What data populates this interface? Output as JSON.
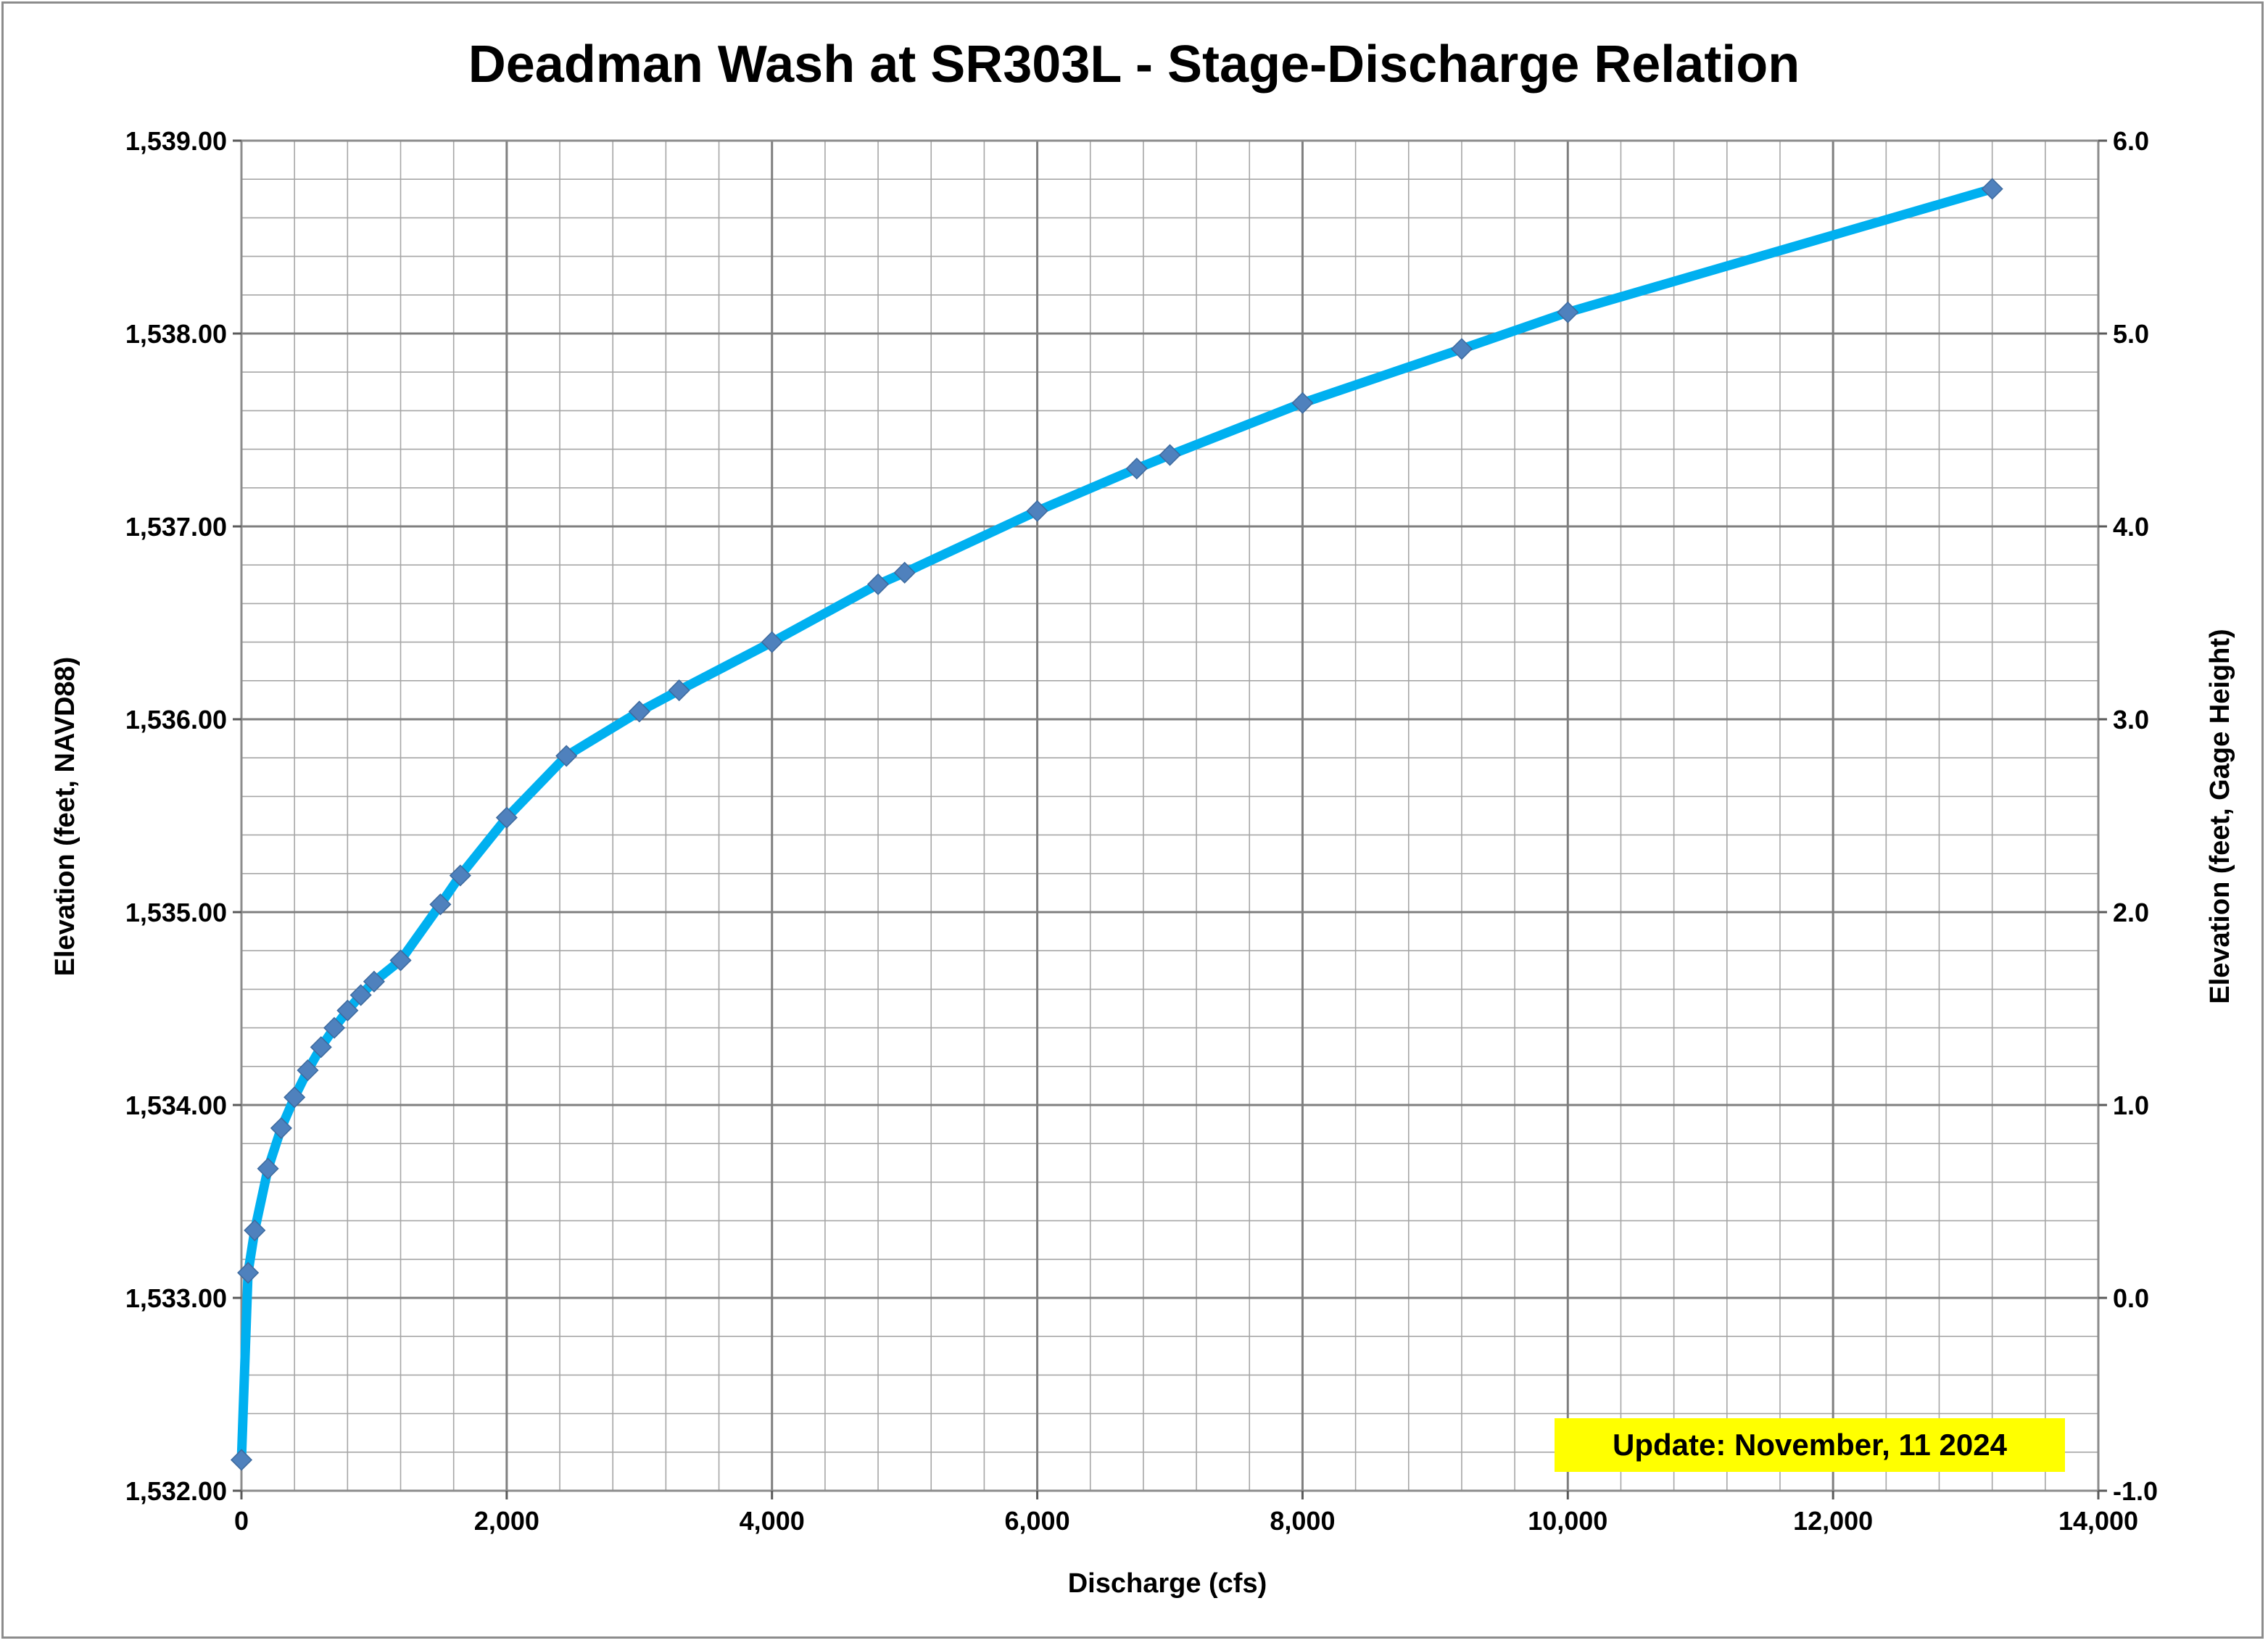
{
  "chart_data": {
    "type": "line",
    "title": "Deadman Wash at SR303L - Stage-Discharge Relation",
    "xlabel": "Discharge (cfs)",
    "ylabel": "Elevation (feet, NAVD88)",
    "y2label": "Elevation (feet, Gage Height)",
    "xlim": [
      0,
      14000
    ],
    "ylim": [
      1532.0,
      1539.0
    ],
    "y2lim": [
      -1.0,
      6.0
    ],
    "x_ticks": [
      0,
      2000,
      4000,
      6000,
      8000,
      10000,
      12000,
      14000
    ],
    "x_tick_labels": [
      "0",
      "2,000",
      "4,000",
      "6,000",
      "8,000",
      "10,000",
      "12,000",
      "14,000"
    ],
    "y_ticks": [
      1532,
      1533,
      1534,
      1535,
      1536,
      1537,
      1538,
      1539
    ],
    "y_tick_labels": [
      "1,532.00",
      "1,533.00",
      "1,534.00",
      "1,535.00",
      "1,536.00",
      "1,537.00",
      "1,538.00",
      "1,539.00"
    ],
    "y2_ticks": [
      -1,
      0,
      1,
      2,
      3,
      4,
      5,
      6
    ],
    "y2_tick_labels": [
      "-1.0",
      "0.0",
      "1.0",
      "2.0",
      "3.0",
      "4.0",
      "5.0",
      "6.0"
    ],
    "grid": true,
    "minor_grid_x": 400,
    "minor_grid_y": 0.2,
    "colors": {
      "line": "#00b0f0",
      "marker": "#4f81bd",
      "grid": "#a6a6a6",
      "note_bg": "#ffff00"
    },
    "series": [
      {
        "x": [
          0,
          50,
          100,
          200,
          300,
          400,
          500,
          600,
          700,
          800,
          900,
          1000,
          1200,
          1500,
          1650,
          2000,
          2450,
          3000,
          3300,
          4000,
          4800,
          5000,
          6000,
          6750,
          7000,
          8000,
          9200,
          10000,
          13200
        ],
        "y": [
          1532.16,
          1533.13,
          1533.35,
          1533.67,
          1533.88,
          1534.04,
          1534.18,
          1534.3,
          1534.4,
          1534.49,
          1534.57,
          1534.64,
          1534.75,
          1535.04,
          1535.19,
          1535.49,
          1535.81,
          1536.04,
          1536.15,
          1536.4,
          1536.7,
          1536.76,
          1537.08,
          1537.3,
          1537.37,
          1537.64,
          1537.92,
          1538.11,
          1538.75
        ]
      }
    ],
    "annotations": [
      {
        "text": "Update: November, 11 2024"
      }
    ]
  }
}
